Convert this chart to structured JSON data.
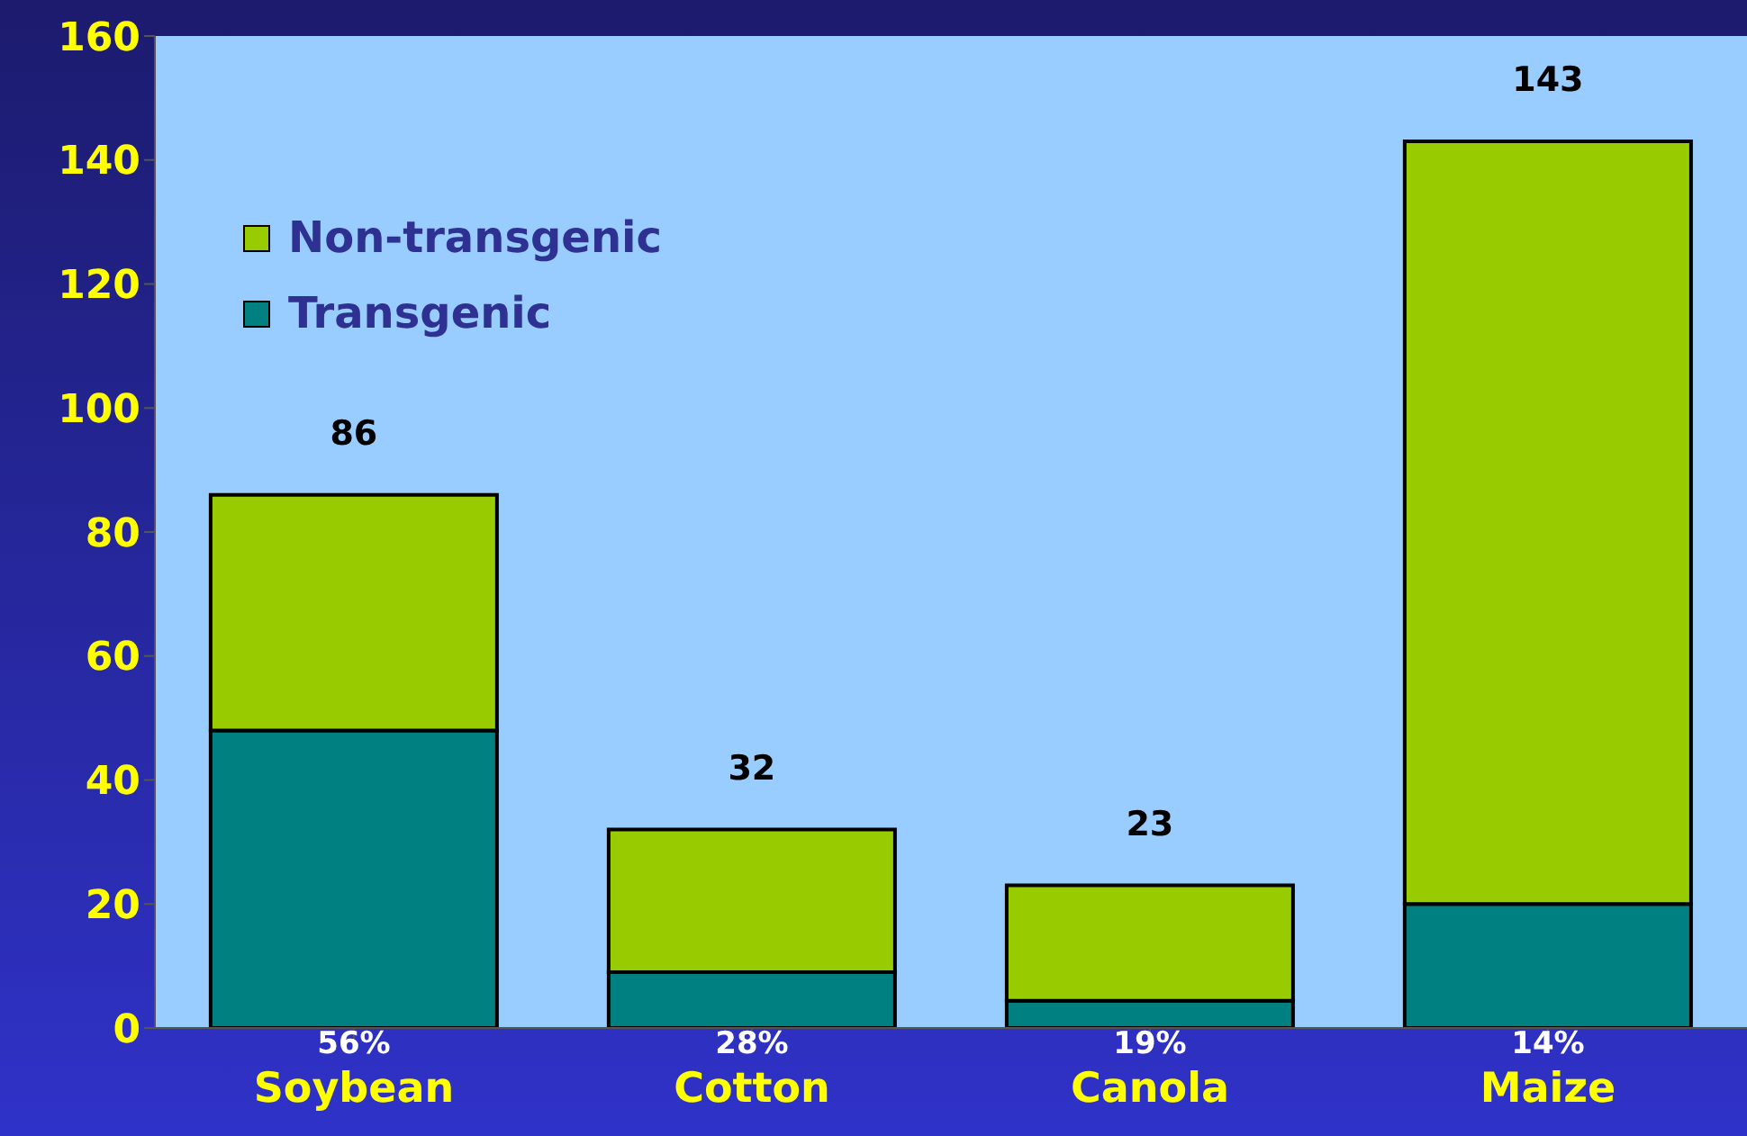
{
  "chart_data": {
    "type": "bar",
    "stacked": true,
    "categories": [
      "Soybean",
      "Cotton",
      "Canola",
      "Maize"
    ],
    "series": [
      {
        "name": "Transgenic",
        "color": "#008080",
        "values": [
          48,
          9,
          4.4,
          20
        ]
      },
      {
        "name": "Non-transgenic",
        "color": "#99cc00",
        "values": [
          38,
          23,
          18.6,
          123
        ]
      }
    ],
    "totals": [
      "86",
      "32",
      "23",
      "143"
    ],
    "annotations": [
      "56%",
      "28%",
      "19%",
      "14%"
    ],
    "ylim": [
      0,
      160
    ],
    "yticks": [
      0,
      20,
      40,
      60,
      80,
      100,
      120,
      140,
      160
    ],
    "grid": false,
    "legend": "top left"
  }
}
